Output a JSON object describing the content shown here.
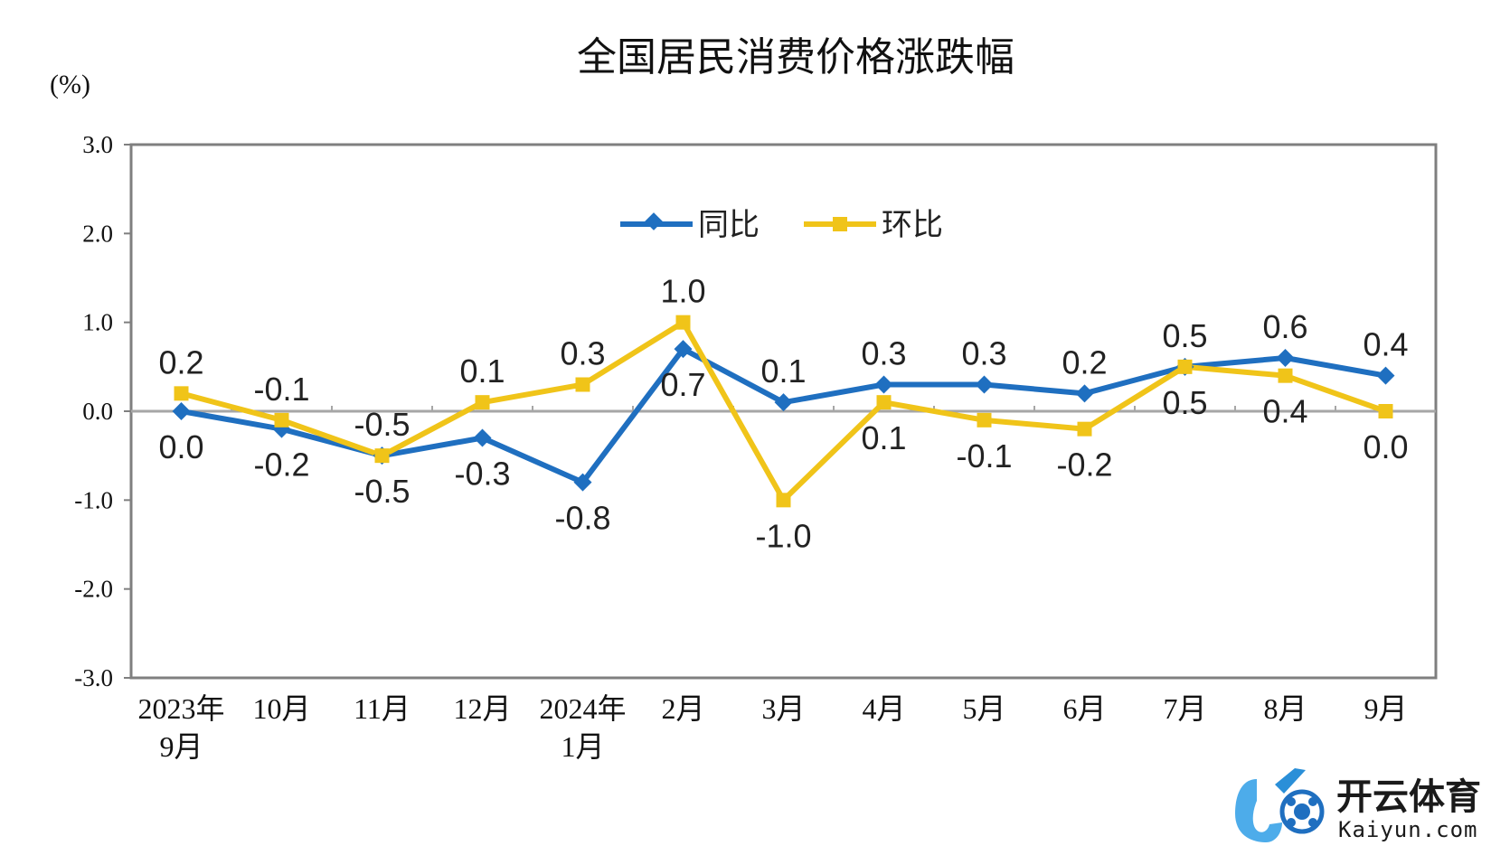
{
  "chart_data": {
    "type": "line",
    "title": "全国居民消费价格涨跌幅",
    "unit_label": "(%)",
    "ylim": [
      -3.0,
      3.0
    ],
    "yticks": [
      "3.0",
      "2.0",
      "1.0",
      "0.0",
      "-1.0",
      "-2.0",
      "-3.0"
    ],
    "ytick_values": [
      3,
      2,
      1,
      0,
      -1,
      -2,
      -3
    ],
    "categories": [
      [
        "2023年",
        "9月"
      ],
      [
        "10月"
      ],
      [
        "11月"
      ],
      [
        "12月"
      ],
      [
        "2024年",
        "1月"
      ],
      [
        "2月"
      ],
      [
        "3月"
      ],
      [
        "4月"
      ],
      [
        "5月"
      ],
      [
        "6月"
      ],
      [
        "7月"
      ],
      [
        "8月"
      ],
      [
        "9月"
      ]
    ],
    "legend_position": "top-center",
    "series": [
      {
        "name": "同比",
        "color": "#1f6fc0",
        "marker": "diamond",
        "values": [
          0.0,
          -0.2,
          -0.5,
          -0.3,
          -0.8,
          0.7,
          0.1,
          0.3,
          0.3,
          0.2,
          0.5,
          0.6,
          0.4
        ],
        "labels": [
          "0.0",
          "-0.2",
          "-0.5",
          "-0.3",
          "-0.8",
          "0.7",
          "0.1",
          "0.3",
          "0.3",
          "0.2",
          "0.5",
          "0.6",
          "0.4"
        ]
      },
      {
        "name": "环比",
        "color": "#f0c419",
        "marker": "square",
        "values": [
          0.2,
          -0.1,
          -0.5,
          0.1,
          0.3,
          1.0,
          -1.0,
          0.1,
          -0.1,
          -0.2,
          0.5,
          0.4,
          0.0
        ],
        "labels": [
          "0.2",
          "-0.1",
          "-0.5",
          "0.1",
          "0.3",
          "1.0",
          "-1.0",
          "0.1",
          "-0.1",
          "-0.2",
          "0.5",
          "0.4",
          "0.0"
        ]
      }
    ]
  },
  "watermark": {
    "text_main": "开云体育",
    "text_sub": "Kaiyun.com"
  }
}
